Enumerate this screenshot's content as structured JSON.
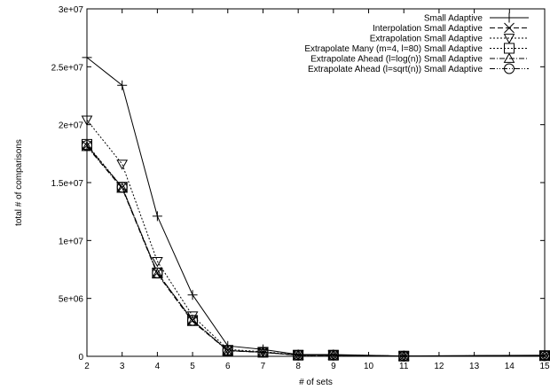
{
  "chart_data": {
    "type": "line",
    "xlabel": "# of sets",
    "ylabel": "total # of comparisons",
    "xlim": [
      2,
      15
    ],
    "ylim": [
      0,
      30000000
    ],
    "x_ticks": [
      "2",
      "3",
      "4",
      "5",
      "6",
      "7",
      "8",
      "9",
      "10",
      "11",
      "12",
      "13",
      "14",
      "15"
    ],
    "y_ticks": [
      "0",
      "5e+06",
      "1e+07",
      "1.5e+07",
      "2e+07",
      "2.5e+07",
      "3e+07"
    ],
    "y_tick_values": [
      0,
      5000000,
      10000000,
      15000000,
      20000000,
      25000000,
      30000000
    ],
    "grid": false,
    "legend_position": "top-right",
    "x": [
      2,
      3,
      4,
      5,
      6,
      7,
      8,
      9,
      11,
      15
    ],
    "series": [
      {
        "name": "Small Adaptive",
        "marker": "plus",
        "dash": "solid",
        "values": [
          25800000,
          23400000,
          12100000,
          5300000,
          900000,
          600000,
          150000,
          150000,
          30000,
          100000
        ]
      },
      {
        "name": "Interpolation Small Adaptive",
        "marker": "x",
        "dash": "dashed",
        "values": [
          18200000,
          14600000,
          7200000,
          3100000,
          500000,
          350000,
          100000,
          100000,
          20000,
          60000
        ]
      },
      {
        "name": "Extrapolation Small Adaptive",
        "marker": "triangle-down",
        "dash": "dotted",
        "values": [
          20400000,
          16600000,
          8200000,
          3500000,
          600000,
          400000,
          120000,
          120000,
          25000,
          70000
        ]
      },
      {
        "name": "Extrapolate Many (m=4, l=80) Small Adaptive",
        "marker": "square",
        "dash": "dotted",
        "values": [
          18300000,
          14600000,
          7200000,
          3100000,
          500000,
          350000,
          100000,
          100000,
          20000,
          60000
        ]
      },
      {
        "name": "Extrapolate Ahead (l=log(n)) Small Adaptive",
        "marker": "triangle-up",
        "dash": "dashdot",
        "values": [
          18100000,
          14500000,
          7100000,
          3000000,
          480000,
          340000,
          100000,
          100000,
          20000,
          60000
        ]
      },
      {
        "name": "Extrapolate Ahead (l=sqrt(n)) Small Adaptive",
        "marker": "circle",
        "dash": "dashdotdot",
        "values": [
          18200000,
          14600000,
          7200000,
          3100000,
          500000,
          350000,
          100000,
          100000,
          20000,
          60000
        ]
      }
    ]
  }
}
